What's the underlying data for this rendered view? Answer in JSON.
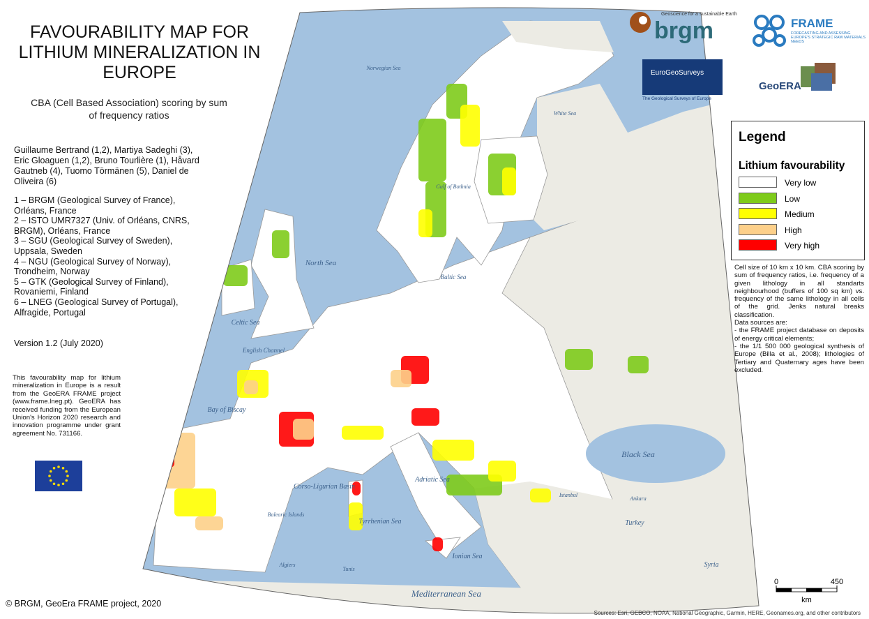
{
  "header": {
    "title": "FAVOURABILITY MAP FOR LITHIUM MINERALIZATION IN EUROPE",
    "subtitle": "CBA (Cell Based Association) scoring by sum of frequency ratios"
  },
  "authors": "Guillaume Bertrand (1,2), Martiya Sadeghi (3), Eric Gloaguen (1,2), Bruno Tourlière (1), Håvard Gautneb (4), Tuomo Törmänen (5), Daniel de Oliveira (6)",
  "affiliations": [
    "1 – BRGM (Geological Survey of France), Orléans, France",
    "2 – ISTO UMR7327 (Univ. of Orléans, CNRS, BRGM), Orléans, France",
    "3 – SGU (Geological Survey of Sweden), Uppsala, Sweden",
    "4 – NGU (Geological Survey of Norway), Trondheim, Norway",
    "5 – GTK (Geological Survey of Finland), Rovaniemi, Finland",
    "6 – LNEG (Geological Survey of Portugal), Alfragide, Portugal"
  ],
  "version": "Version 1.2 (July 2020)",
  "funding": "This favourability map for lithium mineralization in Europe is a result from the GeoERA FRAME project (www.frame.lneg.pt). GeoERA has received funding from the European Union's Horizon 2020 research and innovation programme under grant agreement No. 731166.",
  "copyright": "© BRGM, GeoEra FRAME project, 2020",
  "logos": {
    "brgm_tagline": "Geoscience for a sustainable Earth",
    "brgm": "brgm",
    "frame": "FRAME",
    "frame_tagline": "FORECASTING AND ASSESSING EUROPE'S STRATEGIC RAW MATERIALS NEEDS",
    "egs": "EuroGeoSurveys",
    "egs_tagline": "The Geological Surveys of Europe",
    "geoera": "GeoERA"
  },
  "legend": {
    "title": "Legend",
    "subtitle": "Lithium favourability",
    "items": [
      {
        "label": "Very low",
        "color": "#ffffff"
      },
      {
        "label": "Low",
        "color": "#7ecb1b"
      },
      {
        "label": "Medium",
        "color": "#ffff00"
      },
      {
        "label": "High",
        "color": "#fdd08a"
      },
      {
        "label": "Very high",
        "color": "#ff0000"
      }
    ]
  },
  "notes": [
    "Cell size of 10 km x 10 km. CBA scoring by sum of frequency ratios, i.e. frequency of a given lithology in all standarts neighbourhood (buffers of 100 sq km) vs. frequency of the same lithology in all cells of the grid. Jenks natural breaks classification.",
    "Data sources are:",
    "- the FRAME project database on deposits of energy critical elements;",
    "- the 1/1 500 000 geological synthesis of Europe (Billa et al., 2008); lithologies of Tertiary and Quaternary ages have been excluded."
  ],
  "map_labels": [
    "Norwegian Sea",
    "White Sea",
    "Gulf of Bothnia",
    "North Sea",
    "Baltic Sea",
    "Celtic Sea",
    "English Channel",
    "Bay of Biscay",
    "Corso-Ligurian Basin",
    "Balearic Islands",
    "Tyrrhenian Sea",
    "Adriatic Sea",
    "Ionian Sea",
    "Black Sea",
    "Turkey",
    "Ankara",
    "Istanbul",
    "Algiers",
    "Tunis",
    "Syria",
    "Mediterranean Sea"
  ],
  "scale": {
    "ticks": [
      0,
      450
    ],
    "unit": "km"
  },
  "sources": "Sources: Esri, GEBCO, NOAA, National Geographic, Garmin, HERE, Geonames.org, and other contributors"
}
